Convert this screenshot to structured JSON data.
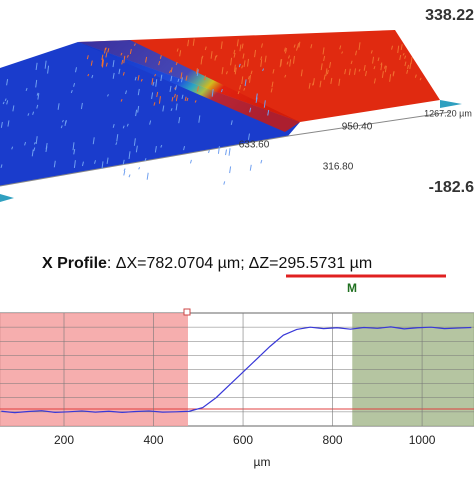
{
  "surface": {
    "z_max": "338.22",
    "z_min": "-182.6",
    "x_ticks": [
      "316.80",
      "633.60",
      "950.40",
      "1267.20 µm"
    ]
  },
  "profile_title": {
    "label": "X Profile",
    "dx": ": ΔX=782.0704 µm;",
    "dz": "ΔZ=295.5731 µm",
    "marker": "M"
  },
  "chart_data": {
    "type": "line",
    "x_label": "µm",
    "xlim": [
      57,
      1116
    ],
    "ylim": [
      -50,
      348
    ],
    "xticks": [
      200,
      400,
      600,
      800,
      1000
    ],
    "regions": [
      {
        "color": "#f4a0a0",
        "range": [
          57,
          477
        ]
      },
      {
        "color": "#a8bb90",
        "range": [
          844,
          1116
        ]
      }
    ],
    "x": [
      60,
      90,
      120,
      150,
      180,
      210,
      240,
      270,
      300,
      330,
      360,
      390,
      420,
      450,
      480,
      510,
      540,
      570,
      600,
      630,
      660,
      690,
      720,
      750,
      780,
      810,
      840,
      870,
      900,
      930,
      960,
      990,
      1020,
      1050,
      1080,
      1110
    ],
    "series": [
      {
        "color": "#3838d8",
        "values": [
          2,
          -3,
          1,
          4,
          -2,
          0,
          3,
          -1,
          2,
          -2,
          1,
          3,
          -1,
          0,
          2,
          15,
          50,
          95,
          140,
          185,
          230,
          270,
          290,
          298,
          293,
          296,
          291,
          297,
          294,
          299,
          292,
          296,
          298,
          293,
          295,
          297
        ]
      }
    ]
  }
}
